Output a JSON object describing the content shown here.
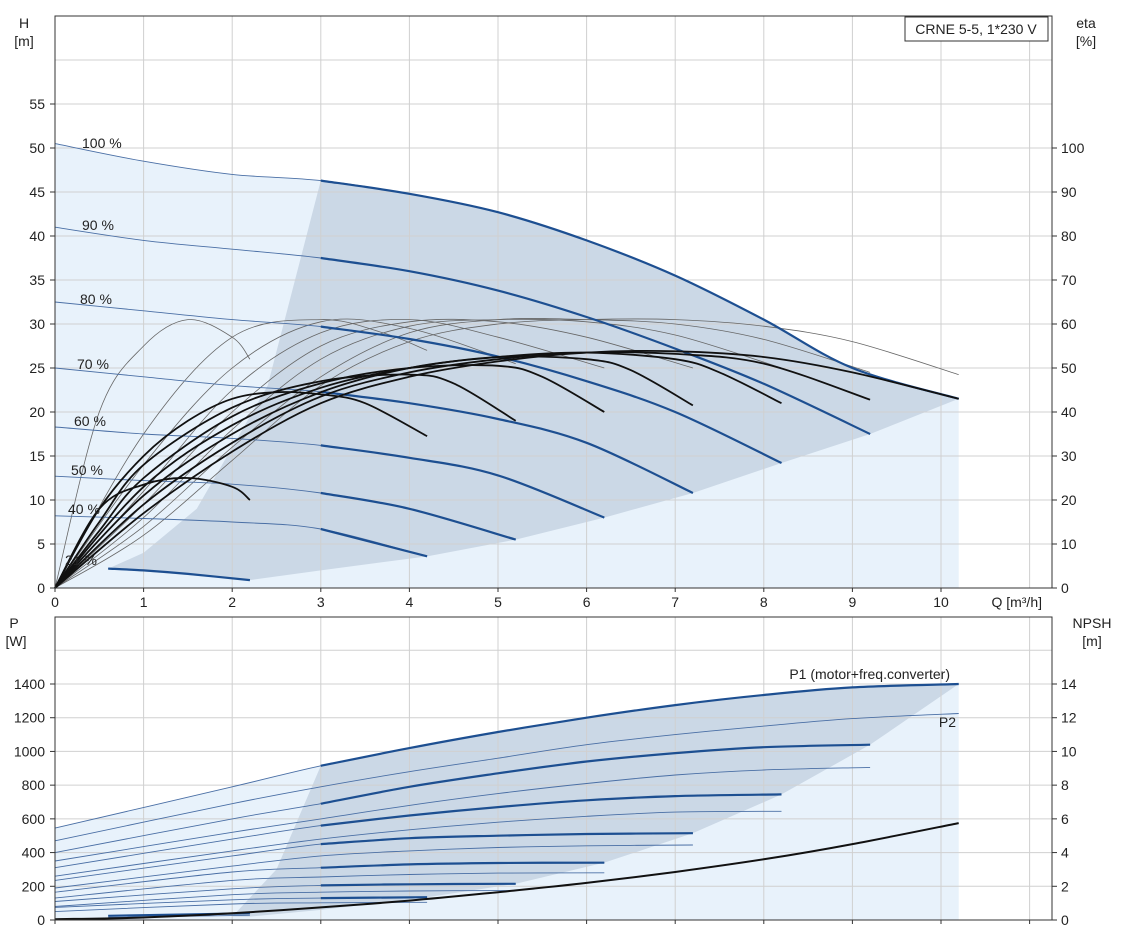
{
  "chart_data": [
    {
      "type": "line",
      "panel": "head-efficiency",
      "legend_box": "CRNE 5-5, 1*230 V",
      "xlabel": "Q [m³/h]",
      "ylabel_left": [
        "H",
        "[m]"
      ],
      "ylabel_right": [
        "eta",
        "[%]"
      ],
      "xlim": [
        0,
        11.2
      ],
      "ylim_left": [
        0,
        64
      ],
      "ylim_right": [
        0,
        128
      ],
      "xticks": [
        "0",
        "1",
        "2",
        "3",
        "4",
        "5",
        "6",
        "7",
        "8",
        "9",
        "10"
      ],
      "yticks_left": [
        "0",
        "5",
        "10",
        "15",
        "20",
        "25",
        "30",
        "35",
        "40",
        "45",
        "50",
        "55"
      ],
      "yticks_right": [
        "0",
        "10",
        "20",
        "30",
        "40",
        "50",
        "60",
        "70",
        "80",
        "90",
        "100"
      ],
      "grid": true,
      "colors": {
        "curve": "#1d4f91",
        "area": "#cbd8e6",
        "light_area": "#e8f2fb",
        "efficiency": "#111111",
        "grid": "#d0d0d0"
      },
      "speed_labels": [
        "100 %",
        "90 %",
        "80 %",
        "70 %",
        "60 %",
        "50 %",
        "40 %",
        "21 %"
      ],
      "speed_curves": [
        {
          "speed": "100 %",
          "x": [
            0,
            1,
            2,
            3,
            4,
            5,
            6,
            7,
            8,
            9,
            10.2
          ],
          "y": [
            50.5,
            48.5,
            47.0,
            46.3,
            44.8,
            42.7,
            39.5,
            35.5,
            30.5,
            25.0,
            21.5
          ]
        },
        {
          "speed": "90 %",
          "x": [
            0,
            1,
            2,
            3,
            4,
            5,
            6,
            7,
            8,
            9.2
          ],
          "y": [
            41.0,
            39.5,
            38.5,
            37.5,
            36.0,
            33.8,
            30.8,
            27.2,
            23.2,
            17.5
          ]
        },
        {
          "speed": "80 %",
          "x": [
            0,
            1,
            2,
            3,
            4,
            5,
            6,
            7,
            8.2
          ],
          "y": [
            32.5,
            31.5,
            30.5,
            29.7,
            28.3,
            26.3,
            23.5,
            20.0,
            14.2
          ]
        },
        {
          "speed": "70 %",
          "x": [
            0,
            1,
            2,
            3,
            4,
            5,
            6,
            7.2
          ],
          "y": [
            25.0,
            24.0,
            23.0,
            22.3,
            21.0,
            19.2,
            16.5,
            10.8
          ]
        },
        {
          "speed": "60 %",
          "x": [
            0,
            1,
            2,
            3,
            4,
            5,
            6.2
          ],
          "y": [
            18.3,
            17.5,
            17.0,
            16.2,
            14.8,
            12.8,
            8.0
          ]
        },
        {
          "speed": "50 %",
          "x": [
            0,
            1,
            2,
            3,
            4,
            5.2
          ],
          "y": [
            12.7,
            12.2,
            11.8,
            10.8,
            9.0,
            5.5
          ]
        },
        {
          "speed": "40 %",
          "x": [
            0,
            1,
            2,
            3,
            4.2
          ],
          "y": [
            8.2,
            7.9,
            7.5,
            6.7,
            3.6
          ]
        },
        {
          "speed": "21 %",
          "x": [
            0.6,
            1,
            1.5,
            2.2
          ],
          "y": [
            2.2,
            2.0,
            1.6,
            0.9
          ]
        }
      ],
      "efficiency_curves": [
        {
          "x": [
            0,
            0.5,
            1,
            1.5,
            2,
            2.2
          ],
          "eta": [
            0,
            18,
            23.5,
            25,
            23,
            20
          ]
        },
        {
          "x": [
            0,
            0.5,
            1,
            1.5,
            2,
            2.5,
            3,
            3.5,
            4.2
          ],
          "eta": [
            0,
            18,
            30,
            38,
            43,
            44.5,
            44,
            42,
            34.5
          ]
        },
        {
          "x": [
            0,
            0.5,
            1,
            2,
            3,
            4,
            4.5,
            5.2
          ],
          "eta": [
            0,
            15,
            28,
            41,
            47,
            48.5,
            46.5,
            38
          ]
        },
        {
          "x": [
            0,
            0.5,
            1,
            2,
            3,
            4,
            5,
            5.5,
            6.2
          ],
          "eta": [
            0,
            13,
            25,
            39,
            46.5,
            50,
            50.5,
            48,
            40
          ]
        },
        {
          "x": [
            0,
            1,
            2,
            3,
            4,
            5,
            6,
            6.5,
            7.2
          ],
          "eta": [
            0,
            23,
            37,
            45.5,
            50,
            52.5,
            52,
            49.5,
            41.5
          ]
        },
        {
          "x": [
            0,
            1,
            2,
            3,
            4,
            5,
            6,
            7,
            7.5,
            8.2
          ],
          "eta": [
            0,
            21,
            35,
            44.5,
            50,
            52.5,
            53.5,
            52,
            49,
            42
          ]
        },
        {
          "x": [
            0,
            1,
            2,
            3,
            4,
            5,
            6,
            7,
            8,
            9.2
          ],
          "eta": [
            0,
            19,
            33,
            43.5,
            49,
            52,
            53.5,
            53.2,
            51,
            42.8
          ]
        },
        {
          "x": [
            0,
            1,
            2,
            3,
            4,
            5,
            6,
            7,
            8,
            9,
            10.2
          ],
          "eta": [
            0,
            17,
            31,
            42,
            48,
            51.5,
            53.5,
            53.8,
            52.5,
            49,
            43
          ]
        }
      ],
      "efficiency_thin_curves": [
        {
          "x": [
            0,
            0.5,
            1,
            1.5,
            2,
            2.2
          ],
          "eta": [
            0,
            40,
            55,
            61,
            57,
            52
          ]
        },
        {
          "x": [
            0,
            1,
            2,
            3,
            3.7,
            4.2
          ],
          "eta": [
            0,
            35,
            57,
            61,
            58,
            54
          ]
        },
        {
          "x": [
            0,
            1,
            2,
            3,
            4,
            5.2
          ],
          "eta": [
            0,
            28,
            50,
            60.5,
            59,
            51
          ]
        },
        {
          "x": [
            0,
            1,
            2,
            3,
            4,
            5,
            6.2
          ],
          "eta": [
            0,
            22,
            45,
            58,
            61,
            57,
            50
          ]
        },
        {
          "x": [
            0,
            1,
            2,
            3,
            4,
            5,
            6,
            7.2
          ],
          "eta": [
            0,
            19,
            40,
            55,
            60.5,
            60.5,
            57,
            50
          ]
        },
        {
          "x": [
            0,
            1,
            2,
            3,
            4,
            5,
            6,
            7,
            8.2
          ],
          "eta": [
            0,
            16,
            36,
            52,
            59.5,
            61,
            60.5,
            57.5,
            50
          ]
        },
        {
          "x": [
            0,
            1,
            2,
            3,
            4,
            5,
            6,
            7,
            8,
            9.2
          ],
          "eta": [
            0,
            14,
            32,
            48,
            58,
            61,
            61,
            60,
            56.5,
            49
          ]
        },
        {
          "x": [
            0,
            1,
            2,
            3,
            4,
            5,
            6,
            7,
            8,
            9,
            10.2
          ],
          "eta": [
            0,
            12,
            29,
            46,
            56,
            60,
            61,
            61,
            59.5,
            56,
            48.5
          ]
        }
      ]
    },
    {
      "type": "line",
      "panel": "power-npsh",
      "xlabel": "",
      "ylabel_left": [
        "P",
        "[W]"
      ],
      "ylabel_right": [
        "NPSH",
        "[m]"
      ],
      "xlim": [
        0,
        11.2
      ],
      "ylim_left": [
        0,
        1600
      ],
      "ylim_right": [
        0,
        16
      ],
      "yticks_left": [
        "0",
        "200",
        "400",
        "600",
        "800",
        "1000",
        "1200",
        "1400"
      ],
      "yticks_right": [
        "0",
        "2",
        "4",
        "6",
        "8",
        "10",
        "12",
        "14"
      ],
      "grid": true,
      "series_labels": {
        "p1": "P1 (motor+freq.converter)",
        "p2": "P2"
      },
      "p1_curves": [
        {
          "x": [
            0,
            2,
            3,
            4,
            5,
            6,
            7,
            8,
            9,
            10.2
          ],
          "y": [
            545,
            790,
            915,
            1020,
            1115,
            1200,
            1275,
            1335,
            1380,
            1400
          ]
        },
        {
          "x": [
            0,
            2,
            3,
            4,
            5,
            6,
            7,
            8,
            9.2
          ],
          "y": [
            400,
            600,
            690,
            790,
            870,
            940,
            990,
            1025,
            1040
          ]
        },
        {
          "x": [
            0,
            2,
            3,
            4,
            5,
            6,
            7,
            8.2
          ],
          "y": [
            310,
            480,
            560,
            620,
            670,
            710,
            735,
            745
          ]
        },
        {
          "x": [
            0,
            2,
            3,
            4,
            5,
            6,
            7.2
          ],
          "y": [
            235,
            380,
            450,
            485,
            500,
            510,
            515
          ]
        },
        {
          "x": [
            0,
            2,
            3,
            4,
            5,
            6.2
          ],
          "y": [
            165,
            285,
            310,
            330,
            338,
            340
          ]
        },
        {
          "x": [
            0,
            2,
            3,
            4,
            5.2
          ],
          "y": [
            110,
            185,
            205,
            212,
            215
          ]
        },
        {
          "x": [
            0,
            2,
            3,
            4.2
          ],
          "y": [
            75,
            120,
            130,
            135
          ]
        },
        {
          "x": [
            0.6,
            2.2
          ],
          "y": [
            25,
            40
          ]
        }
      ],
      "p2_curves": [
        {
          "x": [
            0,
            2,
            3,
            4,
            5,
            6,
            7,
            8,
            9,
            10.2
          ],
          "y": [
            470,
            690,
            790,
            880,
            960,
            1040,
            1100,
            1150,
            1195,
            1225
          ]
        },
        {
          "x": [
            0,
            2,
            3,
            4,
            5,
            6,
            7,
            8,
            9.2
          ],
          "y": [
            350,
            520,
            600,
            680,
            750,
            810,
            860,
            890,
            905
          ]
        },
        {
          "x": [
            0,
            2,
            3,
            4,
            5,
            6,
            7,
            8.2
          ],
          "y": [
            260,
            410,
            480,
            535,
            580,
            615,
            640,
            645
          ]
        },
        {
          "x": [
            0,
            2,
            3,
            4,
            5,
            6,
            7.2
          ],
          "y": [
            190,
            320,
            380,
            410,
            430,
            440,
            445
          ]
        },
        {
          "x": [
            0,
            2,
            3,
            4,
            5,
            6.2
          ],
          "y": [
            130,
            235,
            255,
            270,
            278,
            280
          ]
        },
        {
          "x": [
            0,
            2,
            3,
            4,
            5.2
          ],
          "y": [
            80,
            150,
            165,
            172,
            175
          ]
        },
        {
          "x": [
            0,
            2,
            3,
            4.2
          ],
          "y": [
            50,
            95,
            102,
            105
          ]
        },
        {
          "x": [
            0.6,
            2.2
          ],
          "y": [
            15,
            28
          ]
        }
      ],
      "npsh_curve": {
        "x": [
          0,
          1,
          2,
          3,
          4,
          5,
          6,
          7,
          8,
          9,
          10.2
        ],
        "y": [
          0.05,
          0.15,
          0.4,
          0.75,
          1.15,
          1.65,
          2.2,
          2.85,
          3.6,
          4.5,
          5.75
        ]
      }
    }
  ]
}
